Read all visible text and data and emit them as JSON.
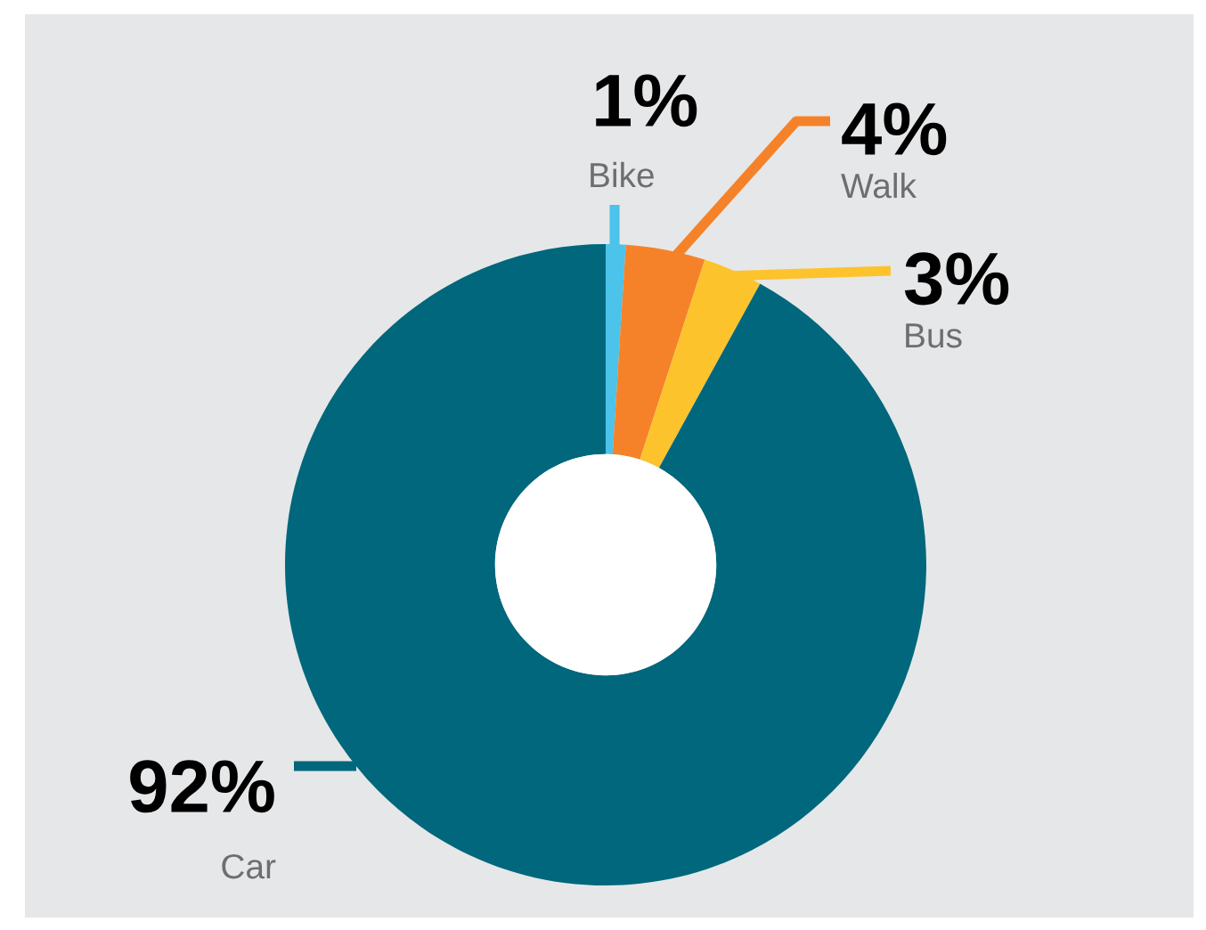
{
  "chart_data": {
    "type": "donut",
    "categories": [
      "Bike",
      "Walk",
      "Bus",
      "Car"
    ],
    "values": [
      1,
      4,
      3,
      92
    ],
    "value_labels": [
      "1%",
      "4%",
      "3%",
      "92%"
    ],
    "colors": [
      "#4cc3ea",
      "#f58229",
      "#fdc32d",
      "#00677c"
    ],
    "legend": false
  }
}
